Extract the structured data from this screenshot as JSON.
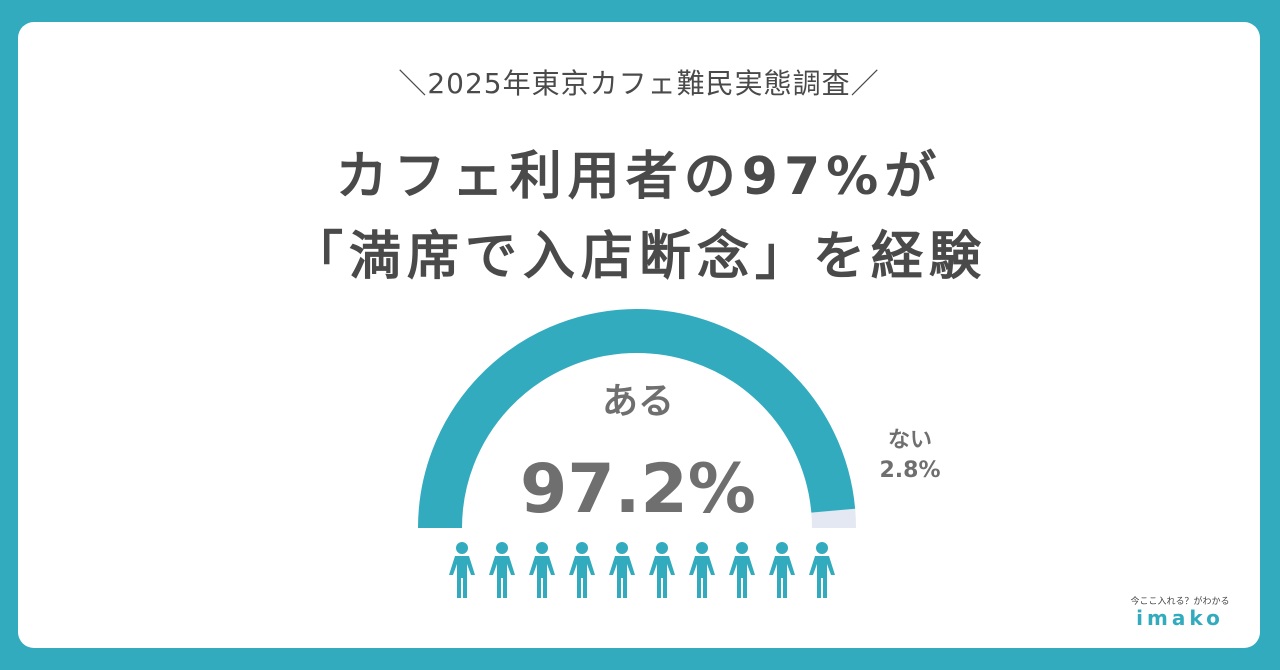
{
  "header": {
    "subtitle": "＼2025年東京カフェ難民実態調査／",
    "headline_line1": "カフェ利用者の97%が",
    "headline_line2": "「満席で入店断念」を経験"
  },
  "chart_data": {
    "type": "gauge",
    "slices": [
      {
        "label": "ある",
        "value": 97.2,
        "display": "97.2%",
        "color": "#33abbf"
      },
      {
        "label": "ない",
        "value": 2.8,
        "display": "2.8%",
        "color": "#e4e8f3"
      }
    ],
    "icon_count": 10,
    "icon_name": "person-icon"
  },
  "brand": {
    "tagline": "今ここ入れる？がわかる",
    "name": "imako"
  },
  "colors": {
    "accent": "#33abbf",
    "remainder": "#e4e8f3",
    "text": "#4a4a4a",
    "value_text": "#6f6f6f"
  }
}
